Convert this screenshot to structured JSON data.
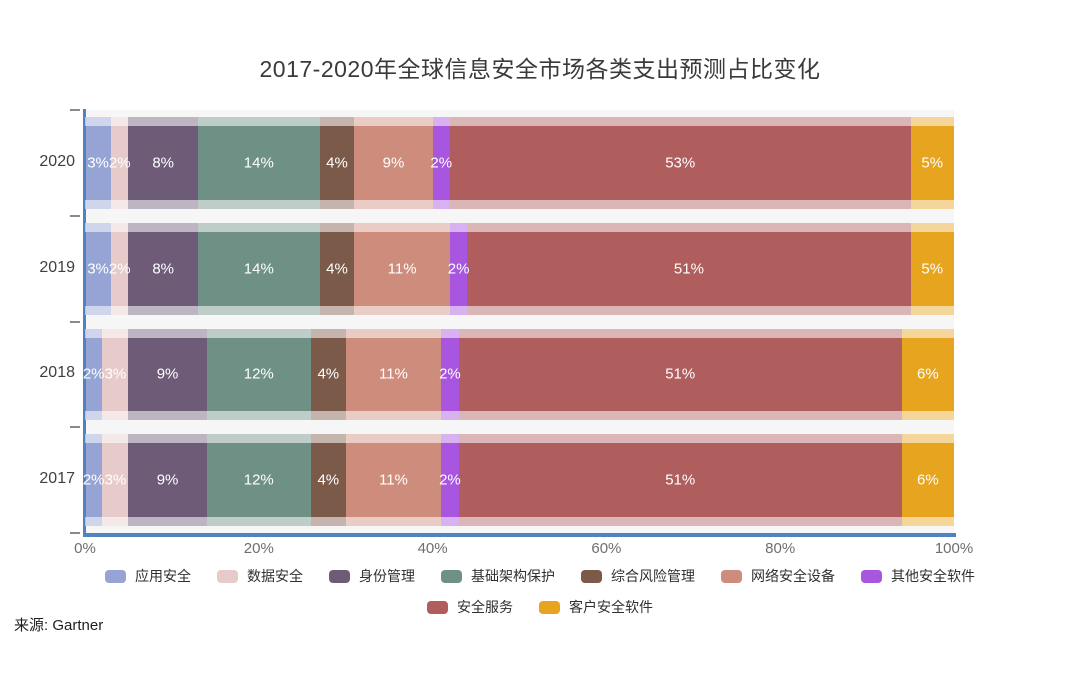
{
  "title": "2017-2020年全球信息安全市场各类支出预测占比变化",
  "source": "来源: Gartner",
  "chart_data": {
    "type": "bar",
    "orientation": "horizontal-stacked",
    "title": "2017-2020年全球信息安全市场各类支出预测占比变化",
    "categories": [
      "2020",
      "2019",
      "2018",
      "2017"
    ],
    "series": [
      {
        "name": "应用安全",
        "color": "#95A4D4",
        "values": [
          3,
          3,
          2,
          2
        ]
      },
      {
        "name": "数据安全",
        "color": "#E7CBCB",
        "values": [
          2,
          2,
          3,
          3
        ]
      },
      {
        "name": "身份管理",
        "color": "#6D5B78",
        "values": [
          8,
          8,
          9,
          9
        ]
      },
      {
        "name": "基础架构保护",
        "color": "#6F9185",
        "values": [
          14,
          14,
          12,
          12
        ]
      },
      {
        "name": "综合风险管理",
        "color": "#7C5A49",
        "values": [
          4,
          4,
          4,
          4
        ]
      },
      {
        "name": "网络安全设备",
        "color": "#CE8D7C",
        "values": [
          9,
          11,
          11,
          11
        ]
      },
      {
        "name": "其他安全软件",
        "color": "#A855DF",
        "values": [
          2,
          2,
          2,
          2
        ]
      },
      {
        "name": "安全服务",
        "color": "#B05D5D",
        "values": [
          53,
          51,
          51,
          51
        ]
      },
      {
        "name": "客户安全软件",
        "color": "#E6A41F",
        "values": [
          5,
          5,
          6,
          6
        ]
      }
    ],
    "unit": "%",
    "xlim": [
      0,
      100
    ],
    "x_ticks": [
      "0%",
      "20%",
      "40%",
      "60%",
      "80%",
      "100%"
    ],
    "grid": false,
    "legend_position": "bottom",
    "legend_rows": [
      7,
      2
    ],
    "axis_color": "#5082C0"
  }
}
